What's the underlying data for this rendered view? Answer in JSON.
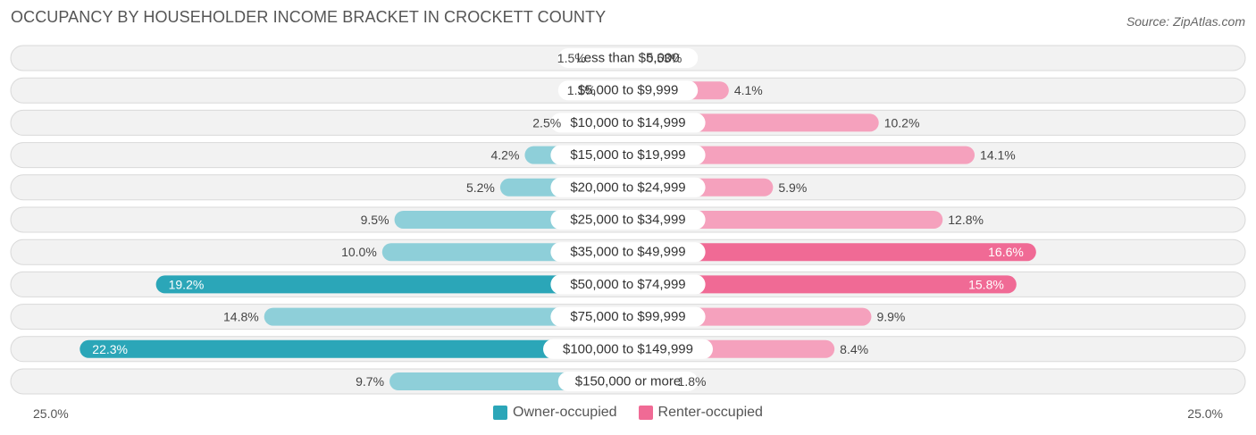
{
  "title": "OCCUPANCY BY HOUSEHOLDER INCOME BRACKET IN CROCKETT COUNTY",
  "source": "Source: ZipAtlas.com",
  "colors": {
    "owner_light": "#8ecfd9",
    "owner_dark": "#2ba6b8",
    "renter_light": "#f5a1bd",
    "renter_dark": "#f06a95",
    "row_bg": "#f2f2f2",
    "row_border": "#d9d9d9"
  },
  "legend": {
    "owner": "Owner-occupied",
    "renter": "Renter-occupied"
  },
  "axis": {
    "left_label": "25.0%",
    "right_label": "25.0%"
  },
  "chart_data": {
    "type": "bar",
    "orientation": "horizontal-diverging",
    "title": "OCCUPANCY BY HOUSEHOLDER INCOME BRACKET IN CROCKETT COUNTY",
    "xlim": [
      -25,
      25
    ],
    "categories": [
      "Less than $5,000",
      "$5,000 to $9,999",
      "$10,000 to $14,999",
      "$15,000 to $19,999",
      "$20,000 to $24,999",
      "$25,000 to $34,999",
      "$35,000 to $49,999",
      "$50,000 to $74,999",
      "$75,000 to $99,999",
      "$100,000 to $149,999",
      "$150,000 or more"
    ],
    "series": [
      {
        "name": "Owner-occupied",
        "values": [
          1.5,
          1.1,
          2.5,
          4.2,
          5.2,
          9.5,
          10.0,
          19.2,
          14.8,
          22.3,
          9.7
        ],
        "labels": [
          "1.5%",
          "1.1%",
          "2.5%",
          "4.2%",
          "5.2%",
          "9.5%",
          "10.0%",
          "19.2%",
          "14.8%",
          "22.3%",
          "9.7%"
        ]
      },
      {
        "name": "Renter-occupied",
        "values": [
          0.53,
          4.1,
          10.2,
          14.1,
          5.9,
          12.8,
          16.6,
          15.8,
          9.9,
          8.4,
          1.8
        ],
        "labels": [
          "0.53%",
          "4.1%",
          "10.2%",
          "14.1%",
          "5.9%",
          "12.8%",
          "16.6%",
          "15.8%",
          "9.9%",
          "8.4%",
          "1.8%"
        ]
      }
    ]
  }
}
